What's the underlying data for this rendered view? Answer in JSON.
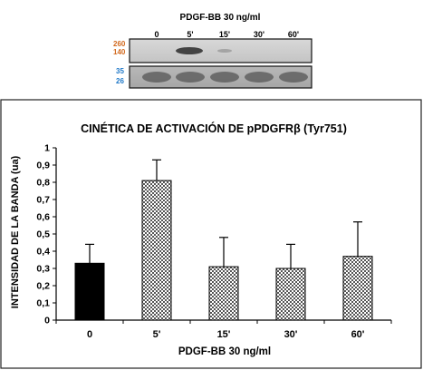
{
  "blot": {
    "header": "PDGF-BB 30 ng/ml",
    "lanes": [
      "0",
      "5'",
      "15'",
      "30'",
      "60'"
    ],
    "upper_markers": [
      "260",
      "140"
    ],
    "lower_markers": [
      "35",
      "26"
    ],
    "upper_marker_color": "#d2691e",
    "lower_marker_color": "#1e78c8"
  },
  "chart_data": {
    "type": "bar",
    "title": "CINÉTICA DE ACTIVACIÓN DE pPDGFRβ (Tyr751)",
    "xlabel": "PDGF-BB 30 ng/ml",
    "ylabel": "INTENSIDAD DE LA BANDA (ua)",
    "categories": [
      "0",
      "5'",
      "15'",
      "30'",
      "60'"
    ],
    "values": [
      0.33,
      0.81,
      0.31,
      0.3,
      0.37
    ],
    "errors": [
      0.11,
      0.12,
      0.17,
      0.14,
      0.2
    ],
    "ylim": [
      0,
      1
    ],
    "yticks": [
      "0",
      "0,1",
      "0,2",
      "0,3",
      "0,4",
      "0,5",
      "0,6",
      "0,7",
      "0,8",
      "0,9",
      "1"
    ],
    "grid": false,
    "bar_fills": [
      "solid-black",
      "checkered",
      "checkered",
      "checkered",
      "checkered"
    ]
  }
}
